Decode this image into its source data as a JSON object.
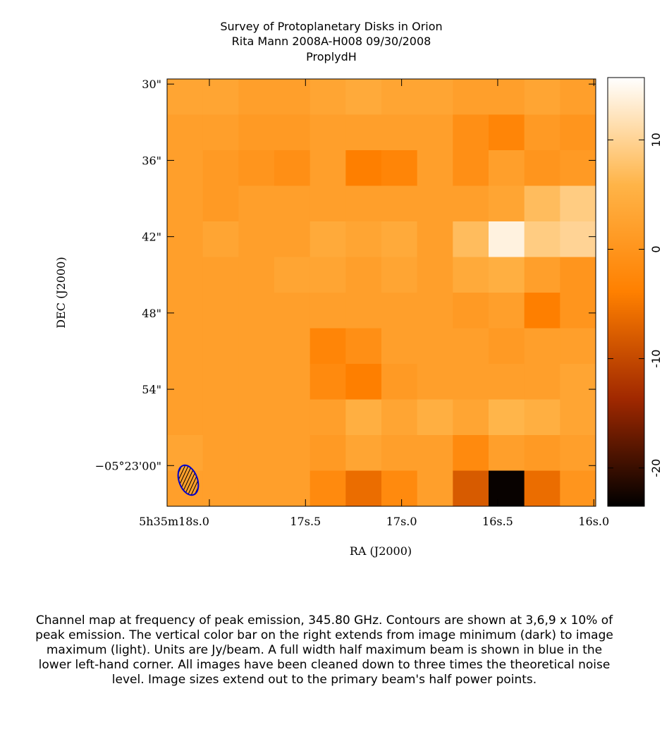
{
  "chart_data": {
    "type": "heatmap",
    "title": "Survey of Protoplanetary Disks in Orion",
    "subtitle": "Rita Mann   2008A-H008   09/30/2008",
    "object": "ProplydH",
    "xlabel": "RA (J2000)",
    "ylabel": "DEC (J2000)",
    "xlim": [
      18.22,
      15.99
    ],
    "xticks": [
      {
        "value": 18.0,
        "label": "5h35m18s.0"
      },
      {
        "value": 17.5,
        "label": "17s.5"
      },
      {
        "value": 17.0,
        "label": "17s.0"
      },
      {
        "value": 16.5,
        "label": "16s.5"
      },
      {
        "value": 16.0,
        "label": "16s.0"
      }
    ],
    "ylim": [
      63.2,
      29.6
    ],
    "yticks": [
      {
        "value": 30,
        "label": "30\""
      },
      {
        "value": 36,
        "label": "36\""
      },
      {
        "value": 42,
        "label": "42\""
      },
      {
        "value": 48,
        "label": "48\""
      },
      {
        "value": 54,
        "label": "54\""
      },
      {
        "value": 60,
        "label": "−05°23'00\""
      }
    ],
    "z": [
      [
        3,
        3,
        2,
        2,
        3,
        4,
        3,
        3,
        2,
        2,
        3,
        2
      ],
      [
        2,
        2,
        1,
        1,
        2,
        2,
        2,
        2,
        -1,
        -3,
        1,
        0
      ],
      [
        2,
        1,
        0,
        -1,
        2,
        -4,
        -3,
        2,
        -1,
        2,
        0,
        1
      ],
      [
        2,
        1,
        2,
        2,
        2,
        2,
        2,
        2,
        2,
        3,
        7,
        9
      ],
      [
        2,
        3,
        2,
        2,
        4,
        3,
        4,
        2,
        7,
        14,
        9,
        10
      ],
      [
        2,
        2,
        2,
        3,
        3,
        2,
        3,
        2,
        4,
        5,
        2,
        0
      ],
      [
        2,
        2,
        2,
        2,
        2,
        2,
        2,
        2,
        1,
        2,
        -4,
        0
      ],
      [
        2,
        2,
        2,
        2,
        -3,
        -1,
        2,
        2,
        2,
        1,
        2,
        2
      ],
      [
        2,
        2,
        2,
        2,
        -2,
        -4,
        1,
        2,
        2,
        2,
        2,
        3
      ],
      [
        2,
        2,
        2,
        2,
        2,
        5,
        3,
        5,
        3,
        6,
        5,
        3
      ],
      [
        3,
        2,
        2,
        2,
        1,
        3,
        2,
        2,
        -2,
        2,
        1,
        2
      ],
      [
        2,
        2,
        2,
        2,
        -2,
        -6,
        -2,
        2,
        -8,
        -23,
        -6,
        0
      ]
    ],
    "clim": [
      -23.5,
      15.7
    ],
    "cticks": [
      10,
      0,
      -10,
      -20
    ],
    "colormap": [
      "#000000",
      "#a02800",
      "#ff8000",
      "#ffb448",
      "#ffffff"
    ],
    "beam_color": "#0000cc"
  },
  "caption": "Channel map at frequency of peak emission, 345.80 GHz.  Contours are shown at 3,6,9 x 10% of peak emission.  The vertical color bar on the right extends from image minimum (dark) to image maximum (light).  Units are Jy/beam.  A full width half maximum beam is shown in blue in the lower left-hand corner.  All images have been cleaned down to three times the theoretical noise level.  Image sizes extend out to the primary beam's half power points."
}
